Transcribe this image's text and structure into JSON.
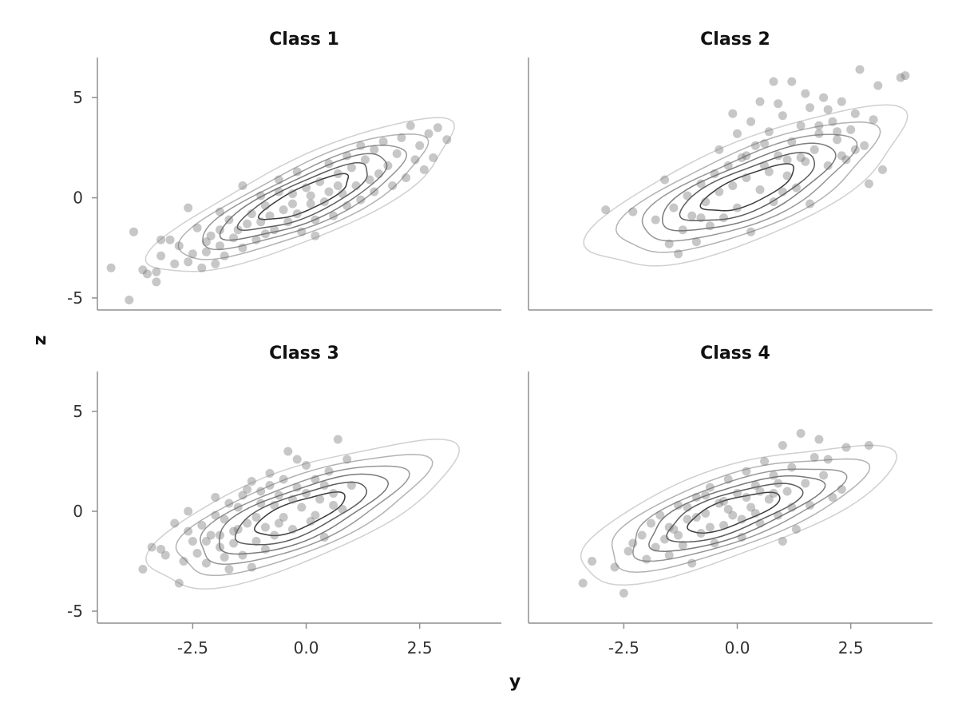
{
  "chart_data": {
    "type": "scatter",
    "xlabel": "y",
    "ylabel": "z",
    "xlim": [
      -4.6,
      4.3
    ],
    "ylim": [
      -5.6,
      7.0
    ],
    "xticks": [
      "-2.5",
      "0.0",
      "2.5"
    ],
    "yticks": [
      "-5",
      "0",
      "5"
    ],
    "xtick_values": [
      -2.5,
      0.0,
      2.5
    ],
    "ytick_values": [
      -5,
      0,
      5
    ],
    "grid": false,
    "contour_levels": 6,
    "contour_colors": [
      "#d0d0d0",
      "#b3b3b3",
      "#979797",
      "#7a7a7a",
      "#5c5c5c",
      "#3a3a3a"
    ],
    "point_color": "#6d6d6d",
    "panels": [
      {
        "title": "Class 1",
        "center": [
          0.0,
          0.0
        ],
        "covariance": [
          [
            1.85,
            1.75
          ],
          [
            1.75,
            2.45
          ]
        ],
        "points": [
          [
            -4.3,
            -3.5
          ],
          [
            -3.9,
            -5.1
          ],
          [
            -3.8,
            -1.7
          ],
          [
            -3.6,
            -3.6
          ],
          [
            -3.5,
            -3.8
          ],
          [
            -3.3,
            -3.7
          ],
          [
            -3.3,
            -4.2
          ],
          [
            -3.2,
            -2.1
          ],
          [
            -3.2,
            -2.9
          ],
          [
            -3.0,
            -2.1
          ],
          [
            -2.9,
            -3.3
          ],
          [
            -2.8,
            -2.4
          ],
          [
            -2.6,
            -3.2
          ],
          [
            -2.5,
            -2.8
          ],
          [
            -2.4,
            -1.5
          ],
          [
            -2.3,
            -3.5
          ],
          [
            -2.2,
            -2.2
          ],
          [
            -2.2,
            -2.7
          ],
          [
            -2.1,
            -1.9
          ],
          [
            -2.0,
            -3.3
          ],
          [
            -1.9,
            -2.4
          ],
          [
            -1.9,
            -1.6
          ],
          [
            -1.8,
            -2.9
          ],
          [
            -1.7,
            -1.1
          ],
          [
            -1.6,
            -2.0
          ],
          [
            -1.5,
            -1.6
          ],
          [
            -1.4,
            -2.5
          ],
          [
            -1.3,
            -1.3
          ],
          [
            -1.2,
            -0.8
          ],
          [
            -1.1,
            -2.1
          ],
          [
            -1.0,
            -1.2
          ],
          [
            -0.9,
            -0.4
          ],
          [
            -0.9,
            -1.8
          ],
          [
            -0.8,
            -0.9
          ],
          [
            -0.7,
            -1.6
          ],
          [
            -0.6,
            0.3
          ],
          [
            -0.5,
            -0.6
          ],
          [
            -0.4,
            -1.2
          ],
          [
            -0.3,
            0.2
          ],
          [
            -0.2,
            -0.8
          ],
          [
            -0.1,
            -1.7
          ],
          [
            0.0,
            0.5
          ],
          [
            0.1,
            -0.3
          ],
          [
            0.2,
            -1.1
          ],
          [
            0.3,
            0.8
          ],
          [
            0.4,
            -0.2
          ],
          [
            0.5,
            0.3
          ],
          [
            0.6,
            -0.9
          ],
          [
            0.7,
            1.2
          ],
          [
            0.8,
            0.2
          ],
          [
            0.9,
            -0.4
          ],
          [
            1.0,
            1.5
          ],
          [
            1.1,
            0.6
          ],
          [
            1.2,
            -0.1
          ],
          [
            1.3,
            1.9
          ],
          [
            1.4,
            0.9
          ],
          [
            1.5,
            2.4
          ],
          [
            1.5,
            0.3
          ],
          [
            1.6,
            1.2
          ],
          [
            1.7,
            2.8
          ],
          [
            1.8,
            1.6
          ],
          [
            1.9,
            0.6
          ],
          [
            2.0,
            2.2
          ],
          [
            2.1,
            3.0
          ],
          [
            2.2,
            1.0
          ],
          [
            2.3,
            3.6
          ],
          [
            2.4,
            1.9
          ],
          [
            2.5,
            2.6
          ],
          [
            2.6,
            1.4
          ],
          [
            2.7,
            3.2
          ],
          [
            2.8,
            2.0
          ],
          [
            2.9,
            3.5
          ],
          [
            3.1,
            2.9
          ],
          [
            -1.4,
            0.6
          ],
          [
            -0.2,
            1.3
          ],
          [
            0.5,
            1.7
          ],
          [
            -0.6,
            0.9
          ],
          [
            1.2,
            2.6
          ],
          [
            -2.6,
            -0.5
          ],
          [
            0.9,
            2.1
          ],
          [
            -1.9,
            -0.7
          ],
          [
            0.2,
            -1.9
          ],
          [
            -0.3,
            -0.3
          ],
          [
            0.7,
            0.6
          ],
          [
            -1.0,
            0.1
          ],
          [
            0.1,
            0.1
          ]
        ]
      },
      {
        "title": "Class 2",
        "center": [
          0.25,
          0.45
        ],
        "covariance": [
          [
            2.0,
            1.7
          ],
          [
            1.7,
            2.6
          ]
        ],
        "points": [
          [
            -2.9,
            -0.6
          ],
          [
            -2.3,
            -0.7
          ],
          [
            -1.8,
            -1.1
          ],
          [
            -1.5,
            -2.3
          ],
          [
            -1.4,
            -0.5
          ],
          [
            -1.3,
            -2.8
          ],
          [
            -1.2,
            -1.6
          ],
          [
            -1.1,
            0.1
          ],
          [
            -1.0,
            -0.9
          ],
          [
            -0.9,
            -2.2
          ],
          [
            -0.8,
            0.7
          ],
          [
            -0.7,
            -0.2
          ],
          [
            -0.6,
            -1.4
          ],
          [
            -0.5,
            1.2
          ],
          [
            -0.4,
            0.3
          ],
          [
            -0.3,
            -1.0
          ],
          [
            -0.2,
            1.6
          ],
          [
            -0.1,
            0.6
          ],
          [
            0.0,
            -0.5
          ],
          [
            0.1,
            2.0
          ],
          [
            0.2,
            1.0
          ],
          [
            0.3,
            -1.7
          ],
          [
            0.4,
            2.6
          ],
          [
            0.5,
            0.4
          ],
          [
            0.6,
            1.6
          ],
          [
            0.7,
            3.3
          ],
          [
            0.8,
            -0.2
          ],
          [
            0.9,
            2.1
          ],
          [
            1.0,
            4.1
          ],
          [
            1.1,
            1.1
          ],
          [
            1.2,
            2.8
          ],
          [
            1.3,
            0.5
          ],
          [
            1.4,
            3.6
          ],
          [
            1.5,
            1.8
          ],
          [
            1.6,
            4.5
          ],
          [
            1.7,
            2.4
          ],
          [
            1.8,
            3.2
          ],
          [
            1.9,
            5.0
          ],
          [
            2.0,
            1.6
          ],
          [
            2.1,
            3.8
          ],
          [
            2.2,
            2.9
          ],
          [
            2.3,
            4.8
          ],
          [
            2.4,
            1.9
          ],
          [
            2.5,
            3.4
          ],
          [
            2.6,
            4.2
          ],
          [
            2.7,
            6.4
          ],
          [
            2.8,
            2.6
          ],
          [
            2.9,
            0.7
          ],
          [
            3.0,
            3.9
          ],
          [
            3.1,
            5.6
          ],
          [
            3.2,
            1.4
          ],
          [
            3.6,
            6.0
          ],
          [
            3.7,
            6.1
          ],
          [
            1.2,
            5.8
          ],
          [
            0.8,
            5.8
          ],
          [
            -0.1,
            4.2
          ],
          [
            0.5,
            4.8
          ],
          [
            1.6,
            -0.3
          ],
          [
            2.3,
            2.1
          ],
          [
            0.0,
            3.2
          ],
          [
            -0.4,
            2.4
          ],
          [
            1.0,
            0.3
          ],
          [
            0.3,
            3.8
          ],
          [
            2.0,
            4.4
          ],
          [
            1.4,
            2.0
          ],
          [
            -1.6,
            0.9
          ],
          [
            0.9,
            4.7
          ],
          [
            1.8,
            3.6
          ],
          [
            0.6,
            2.7
          ],
          [
            1.1,
            1.9
          ],
          [
            2.6,
            2.4
          ],
          [
            0.2,
            2.1
          ],
          [
            -0.8,
            -1.0
          ],
          [
            1.5,
            5.2
          ],
          [
            2.2,
            3.3
          ],
          [
            0.7,
            1.3
          ]
        ]
      },
      {
        "title": "Class 3",
        "center": [
          -0.15,
          -0.15
        ],
        "covariance": [
          [
            1.9,
            1.5
          ],
          [
            1.5,
            2.2
          ]
        ],
        "points": [
          [
            -3.6,
            -2.9
          ],
          [
            -3.4,
            -1.8
          ],
          [
            -3.2,
            -1.9
          ],
          [
            -3.1,
            -2.2
          ],
          [
            -2.9,
            -0.6
          ],
          [
            -2.8,
            -3.6
          ],
          [
            -2.7,
            -2.5
          ],
          [
            -2.6,
            0.0
          ],
          [
            -2.5,
            -1.5
          ],
          [
            -2.4,
            -2.1
          ],
          [
            -2.3,
            -0.7
          ],
          [
            -2.2,
            -2.6
          ],
          [
            -2.1,
            -1.2
          ],
          [
            -2.0,
            0.7
          ],
          [
            -1.9,
            -1.8
          ],
          [
            -1.8,
            -0.4
          ],
          [
            -1.7,
            -2.9
          ],
          [
            -1.6,
            -1.0
          ],
          [
            -1.5,
            0.2
          ],
          [
            -1.4,
            -2.2
          ],
          [
            -1.3,
            -0.6
          ],
          [
            -1.2,
            1.5
          ],
          [
            -1.1,
            -1.5
          ],
          [
            -1.0,
            0.4
          ],
          [
            -0.9,
            -0.8
          ],
          [
            -0.8,
            1.9
          ],
          [
            -0.7,
            -1.2
          ],
          [
            -0.6,
            0.8
          ],
          [
            -0.5,
            -0.3
          ],
          [
            -0.4,
            3.0
          ],
          [
            -0.3,
            -0.9
          ],
          [
            -0.2,
            1.2
          ],
          [
            -0.1,
            0.2
          ],
          [
            0.0,
            2.3
          ],
          [
            0.1,
            -0.5
          ],
          [
            0.2,
            1.6
          ],
          [
            0.3,
            0.6
          ],
          [
            0.4,
            -1.3
          ],
          [
            0.5,
            2.0
          ],
          [
            0.6,
            0.9
          ],
          [
            0.7,
            3.6
          ],
          [
            0.8,
            0.1
          ],
          [
            0.9,
            2.6
          ],
          [
            1.0,
            1.3
          ],
          [
            -1.6,
            -1.6
          ],
          [
            -1.1,
            -0.3
          ],
          [
            -0.7,
            0.3
          ],
          [
            -1.9,
            -1.2
          ],
          [
            -1.4,
            0.8
          ],
          [
            -2.2,
            -1.5
          ],
          [
            -0.9,
            -1.9
          ],
          [
            -1.3,
            1.1
          ],
          [
            -0.5,
            1.6
          ],
          [
            -1.7,
            0.4
          ],
          [
            -2.6,
            -1.0
          ],
          [
            -1.2,
            -2.8
          ],
          [
            -0.3,
            0.6
          ],
          [
            0.2,
            -0.2
          ],
          [
            -0.8,
            1.3
          ],
          [
            0.6,
            0.3
          ],
          [
            -1.5,
            -0.9
          ],
          [
            -2.0,
            -0.2
          ],
          [
            -0.6,
            -0.6
          ],
          [
            0.0,
            0.9
          ],
          [
            -1.0,
            1.0
          ],
          [
            0.4,
            1.3
          ],
          [
            -0.2,
            2.6
          ],
          [
            -1.8,
            -2.3
          ]
        ]
      },
      {
        "title": "Class 4",
        "center": [
          -0.1,
          -0.05
        ],
        "covariance": [
          [
            2.0,
            1.45
          ],
          [
            1.45,
            1.95
          ]
        ],
        "points": [
          [
            -3.4,
            -3.6
          ],
          [
            -3.2,
            -2.5
          ],
          [
            -2.7,
            -2.8
          ],
          [
            -2.5,
            -4.1
          ],
          [
            -2.4,
            -2.0
          ],
          [
            -2.3,
            -1.6
          ],
          [
            -2.1,
            -1.2
          ],
          [
            -2.0,
            -2.4
          ],
          [
            -1.9,
            -0.6
          ],
          [
            -1.8,
            -1.8
          ],
          [
            -1.7,
            -0.2
          ],
          [
            -1.6,
            -1.4
          ],
          [
            -1.5,
            -2.2
          ],
          [
            -1.4,
            -0.9
          ],
          [
            -1.3,
            0.3
          ],
          [
            -1.2,
            -1.7
          ],
          [
            -1.1,
            -0.4
          ],
          [
            -1.0,
            -2.6
          ],
          [
            -0.9,
            0.7
          ],
          [
            -0.8,
            -1.1
          ],
          [
            -0.7,
            -0.1
          ],
          [
            -0.6,
            1.2
          ],
          [
            -0.5,
            -1.6
          ],
          [
            -0.4,
            0.4
          ],
          [
            -0.3,
            -0.7
          ],
          [
            -0.2,
            1.6
          ],
          [
            -0.1,
            -0.2
          ],
          [
            0.0,
            0.9
          ],
          [
            0.1,
            -1.3
          ],
          [
            0.2,
            2.0
          ],
          [
            0.3,
            0.2
          ],
          [
            0.4,
            1.3
          ],
          [
            0.5,
            -0.6
          ],
          [
            0.6,
            2.5
          ],
          [
            0.7,
            0.6
          ],
          [
            0.8,
            1.8
          ],
          [
            0.9,
            -0.2
          ],
          [
            1.0,
            3.3
          ],
          [
            1.1,
            1.0
          ],
          [
            1.2,
            2.2
          ],
          [
            1.3,
            -0.9
          ],
          [
            1.4,
            3.9
          ],
          [
            1.5,
            1.4
          ],
          [
            1.6,
            0.3
          ],
          [
            1.7,
            2.7
          ],
          [
            1.8,
            3.6
          ],
          [
            1.9,
            1.8
          ],
          [
            2.0,
            2.6
          ],
          [
            2.1,
            0.7
          ],
          [
            2.3,
            1.1
          ],
          [
            2.4,
            3.2
          ],
          [
            2.9,
            3.3
          ],
          [
            -0.9,
            -0.3
          ],
          [
            -0.3,
            0.5
          ],
          [
            0.2,
            0.7
          ],
          [
            -1.5,
            -0.8
          ],
          [
            0.8,
            0.9
          ],
          [
            -0.6,
            -0.8
          ],
          [
            1.2,
            0.2
          ],
          [
            0.5,
            1.0
          ],
          [
            -1.1,
            0.2
          ],
          [
            0.1,
            -0.4
          ],
          [
            -0.2,
            0.1
          ],
          [
            0.9,
            1.4
          ],
          [
            -0.7,
            0.8
          ],
          [
            1.0,
            -1.5
          ],
          [
            -1.3,
            -1.2
          ],
          [
            0.4,
            -0.1
          ]
        ]
      }
    ]
  }
}
